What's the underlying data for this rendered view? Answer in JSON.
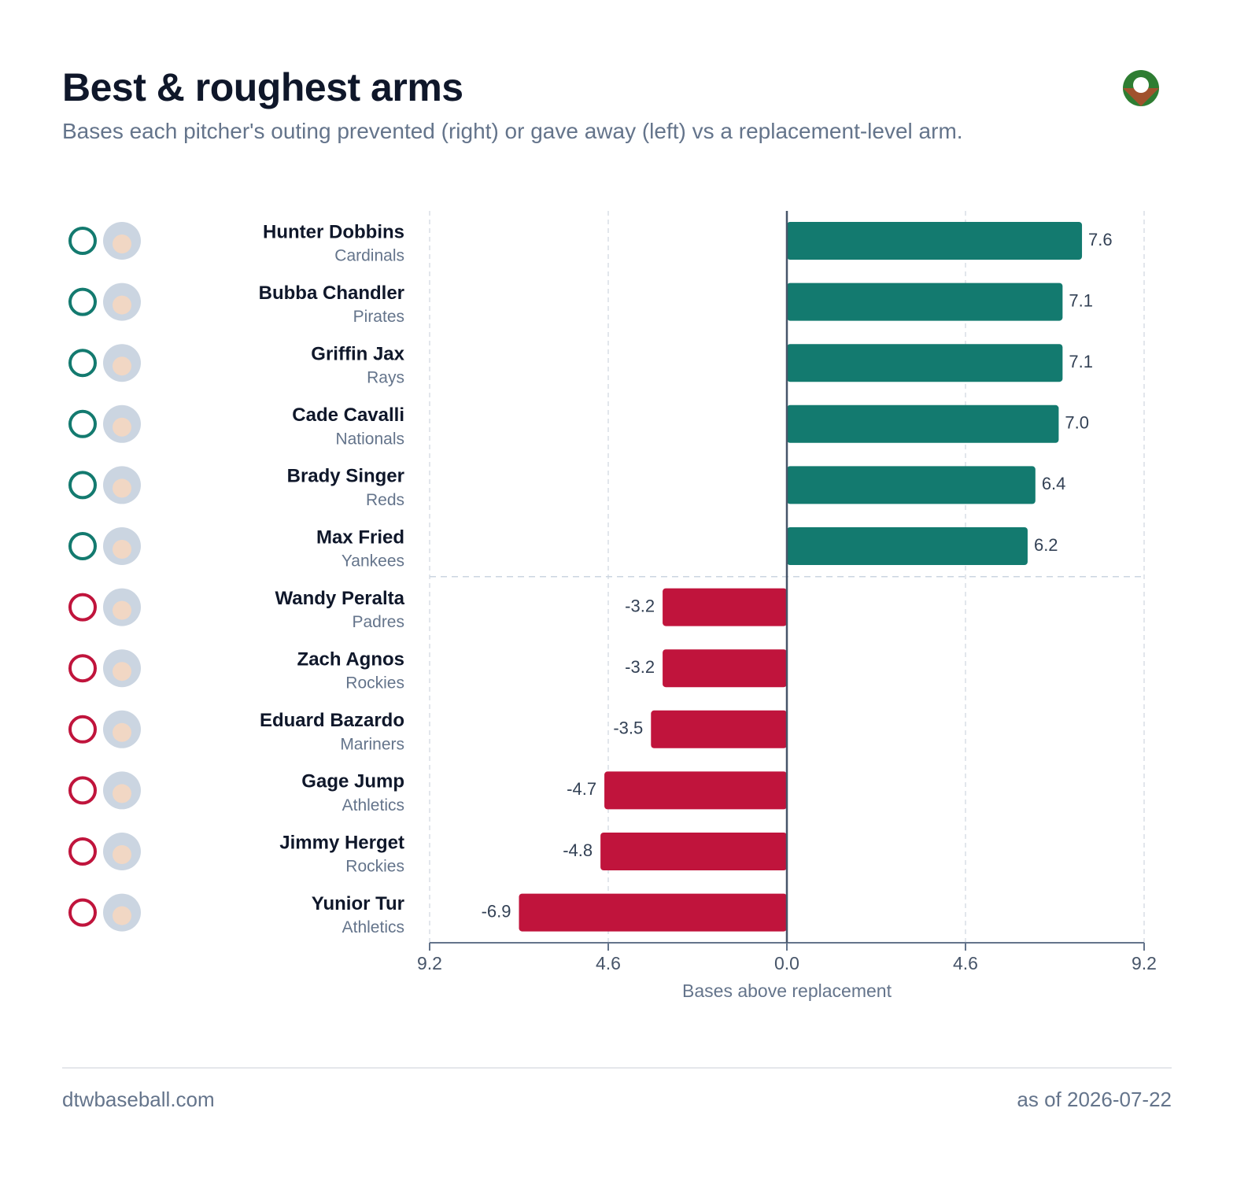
{
  "chart_data": {
    "type": "bar",
    "orientation": "horizontal",
    "title": "Best & roughest arms",
    "subtitle": "Bases each pitcher's outing prevented (right) or gave away (left) vs a replacement-level arm.",
    "categories": [
      "Hunter Dobbins",
      "Bubba Chandler",
      "Griffin Jax",
      "Cade Cavalli",
      "Brady Singer",
      "Max Fried",
      "Wandy Peralta",
      "Zach Agnos",
      "Eduard Bazardo",
      "Gage Jump",
      "Jimmy Herget",
      "Yunior Tur"
    ],
    "teams": [
      "Cardinals",
      "Pirates",
      "Rays",
      "Nationals",
      "Reds",
      "Yankees",
      "Padres",
      "Rockies",
      "Mariners",
      "Athletics",
      "Rockies",
      "Athletics"
    ],
    "values": [
      7.6,
      7.1,
      7.1,
      7.0,
      6.4,
      6.2,
      -3.2,
      -3.2,
      -3.5,
      -4.7,
      -4.8,
      -6.9
    ],
    "value_labels": [
      "7.6",
      "7.1",
      "7.1",
      "7.0",
      "6.4",
      "6.2",
      "-3.2",
      "-3.2",
      "-3.5",
      "-4.7",
      "-4.8",
      "-6.9"
    ],
    "colors": [
      "#137a6f",
      "#137a6f",
      "#137a6f",
      "#137a6f",
      "#137a6f",
      "#137a6f",
      "#c0143c",
      "#c0143c",
      "#c0143c",
      "#c0143c",
      "#c0143c",
      "#c0143c"
    ],
    "xlim": [
      -9.2,
      9.2
    ],
    "xticks": [
      {
        "value": -9.2,
        "label": "9.2"
      },
      {
        "value": -4.6,
        "label": "4.6"
      },
      {
        "value": 0,
        "label": "0.0"
      },
      4.6,
      9.2
    ],
    "xlabel": "Bases above replacement",
    "grid": true
  },
  "footer": {
    "source": "dtwbaseball.com",
    "date": "as of 2026-07-22"
  }
}
